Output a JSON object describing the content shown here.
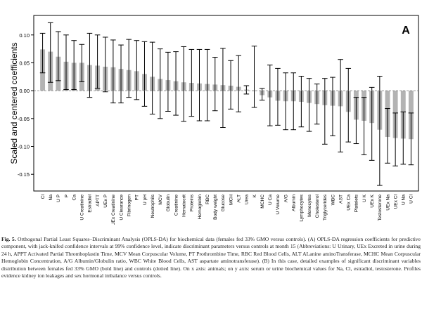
{
  "panel_label": "A",
  "caption": {
    "label": "Fig. 5.",
    "text": "Orthogonal Partial Least Squares–Discriminant Analysis (OPLS-DA) for biochemical data (females fed 33% GMO versus controls). (A) OPLS-DA regression coefficients for predictive component, with jack-knifed confidence intervals at 99% confidence level, indicate discriminant parameters versus controls at month 15 (Abbreviations: U Urinary, UEx Excreted in urine during 24 h, APPT Activated Partial Thromboplastin Time, MCV Mean Corpuscular Volume, PT Prothrombine Time, RBC Red Blood Cells, ALT ALanine aminoTransferase, MCHC Mean Corpuscular Hemoglobin Concentration, A/G Albumin/Globulin ratio, WBC White Blood Cells, AST aspartate aminotransferase). (B) In this case, detailed examples of significant discriminant variables distribution between females fed 33% GMO (bold line) and controls (dotted line). On x axis: animals; on y axis: serum or urine biochemical values for Na, Cl, estradiol, testosterone. Profiles evidence kidney ion leakages and sex hormonal imbalance versus controls."
  },
  "chart_data": {
    "type": "bar",
    "ylabel": "Scaled and centered coefficients",
    "xlabel": "",
    "ylim": [
      -0.18,
      0.135
    ],
    "yticks": [
      "0.10",
      "0.05",
      "0.00",
      "-0.05",
      "-0.10",
      "-0.15"
    ],
    "ytick_values": [
      0.1,
      0.05,
      0.0,
      -0.05,
      -0.1,
      -0.15
    ],
    "error_bars": "jack-knifed 99% confidence intervals",
    "bar_color": "#b3b3b3",
    "categories": [
      "Cl",
      "Na",
      "U P",
      "P",
      "Ca",
      "U Creatinine",
      "Estradiol",
      "APTT",
      "UEx P",
      "UEx Creatinine",
      "U Clearance",
      "Fibrinogen",
      "PT",
      "U pH",
      "Neutrophils",
      "MCV",
      "Globulin",
      "Creatinine",
      "Hematocrit",
      "Proteins",
      "Hemoglobin",
      "RBC",
      "Body weight",
      "Glucose",
      "MCH",
      "ALT",
      "Urea",
      "K",
      "MCHC",
      "U Ca",
      "U Volume",
      "A/G",
      "Albumin",
      "Lymphocytes",
      "Monocytes",
      "Cholesterol",
      "Triglycerides",
      "WBC",
      "AST",
      "UEx Ca",
      "Platelets",
      "U K",
      "UEx K",
      "Testosterone",
      "UEx Na",
      "UEx Cl",
      "U Na",
      "U Cl"
    ],
    "values": [
      0.074,
      0.07,
      0.061,
      0.052,
      0.05,
      0.05,
      0.046,
      0.045,
      0.043,
      0.042,
      0.039,
      0.037,
      0.035,
      0.03,
      0.025,
      0.021,
      0.019,
      0.017,
      0.015,
      0.014,
      0.013,
      0.012,
      0.011,
      0.01,
      0.009,
      0.007,
      0.002,
      0.0,
      -0.008,
      -0.012,
      -0.018,
      -0.019,
      -0.019,
      -0.02,
      -0.022,
      -0.024,
      -0.026,
      -0.027,
      -0.028,
      -0.038,
      -0.052,
      -0.054,
      -0.058,
      -0.07,
      -0.083,
      -0.085,
      -0.086,
      -0.087
    ],
    "err_low": [
      0.032,
      0.015,
      0.018,
      0.002,
      0.002,
      0.016,
      -0.012,
      0.004,
      -0.002,
      -0.022,
      -0.022,
      -0.012,
      -0.016,
      -0.028,
      -0.042,
      -0.05,
      -0.037,
      -0.044,
      -0.055,
      -0.046,
      -0.054,
      -0.054,
      -0.036,
      -0.066,
      -0.033,
      -0.038,
      -0.006,
      -0.03,
      -0.017,
      -0.063,
      -0.062,
      -0.07,
      -0.07,
      -0.065,
      -0.073,
      -0.06,
      -0.096,
      -0.081,
      -0.11,
      -0.092,
      -0.095,
      -0.115,
      -0.125,
      -0.17,
      -0.13,
      -0.135,
      -0.132,
      -0.133
    ],
    "err_high": [
      0.103,
      0.122,
      0.106,
      0.1,
      0.09,
      0.083,
      0.103,
      0.1,
      0.096,
      0.091,
      0.082,
      0.092,
      0.09,
      0.088,
      0.087,
      0.075,
      0.069,
      0.07,
      0.079,
      0.074,
      0.074,
      0.074,
      0.06,
      0.076,
      0.054,
      0.063,
      0.009,
      0.08,
      0.004,
      0.046,
      0.04,
      0.032,
      0.032,
      0.026,
      0.022,
      0.012,
      0.022,
      0.024,
      0.056,
      0.04,
      -0.012,
      -0.012,
      0.006,
      0.026,
      -0.032,
      -0.04,
      -0.038,
      -0.04
    ]
  }
}
